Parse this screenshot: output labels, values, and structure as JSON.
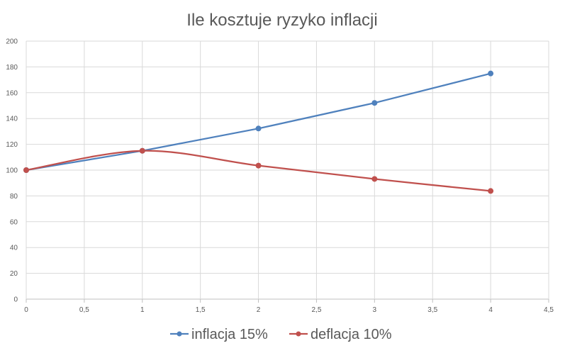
{
  "chart_data": {
    "type": "scatter",
    "title": "Ile kosztuje ryzyko inflacji",
    "xlabel": "",
    "ylabel": "",
    "xlim": [
      0,
      4.5
    ],
    "ylim": [
      0,
      200
    ],
    "x_ticks": [
      "0",
      "0,5",
      "1",
      "1,5",
      "2",
      "2,5",
      "3",
      "3,5",
      "4",
      "4,5"
    ],
    "y_ticks": [
      "0",
      "20",
      "40",
      "60",
      "80",
      "100",
      "120",
      "140",
      "160",
      "180",
      "200"
    ],
    "x_tick_values": [
      0,
      0.5,
      1,
      1.5,
      2,
      2.5,
      3,
      3.5,
      4,
      4.5
    ],
    "y_tick_values": [
      0,
      20,
      40,
      60,
      80,
      100,
      120,
      140,
      160,
      180,
      200
    ],
    "grid": true,
    "legend_position": "bottom",
    "series": [
      {
        "name": "inflacja 15%",
        "color": "#4f81bd",
        "smooth": false,
        "x": [
          0,
          1,
          2,
          3,
          4
        ],
        "y": [
          100,
          115,
          132.25,
          152.09,
          174.9
        ]
      },
      {
        "name": "deflacja 10%",
        "color": "#c0504d",
        "smooth": true,
        "x": [
          0,
          1,
          2,
          3,
          4
        ],
        "y": [
          100,
          115,
          103.5,
          93.15,
          83.84
        ]
      }
    ]
  }
}
